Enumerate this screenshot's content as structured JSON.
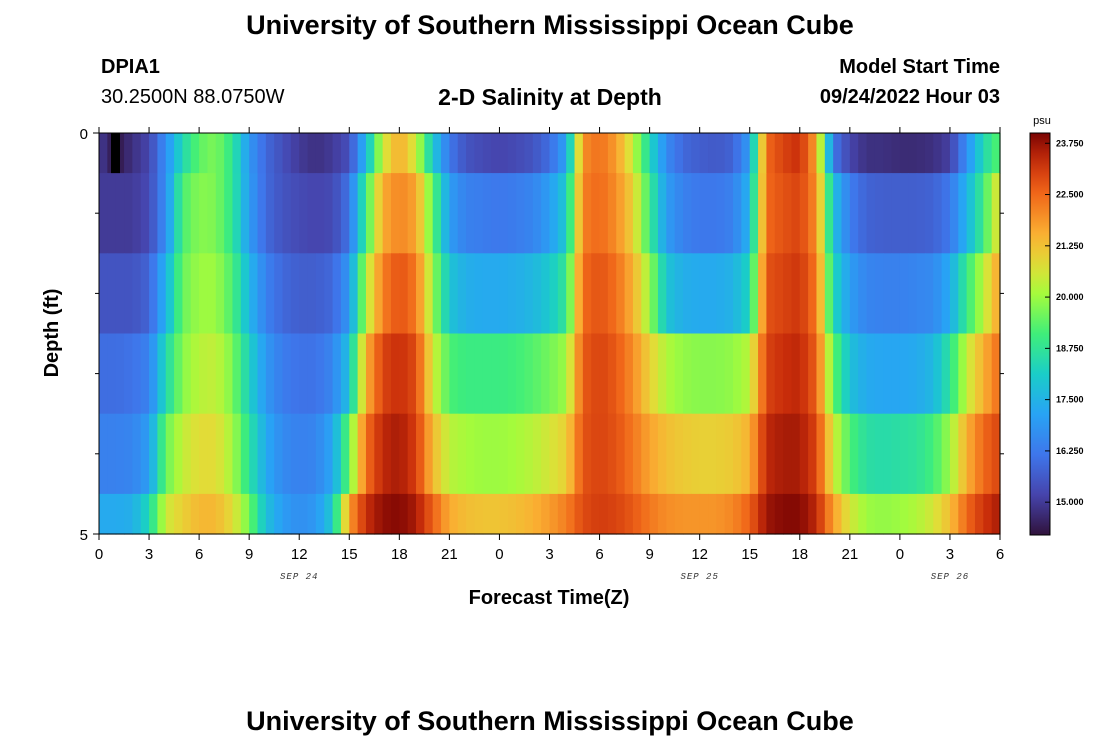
{
  "header": {
    "title": "University of Southern Mississippi Ocean Cube",
    "station_id": "DPIA1",
    "station_coords": "30.2500N  88.0750W",
    "chart_title": "2-D Salinity at Depth",
    "model_label": "Model Start Time",
    "model_time": "09/24/2022 Hour 03"
  },
  "footer": {
    "title": "University of Southern Mississippi Ocean Cube"
  },
  "chart_data": {
    "type": "heatmap",
    "title": "2-D Salinity at Depth",
    "xlabel": "Forecast Time(Z)",
    "ylabel": "Depth (ft)",
    "x_tick_labels": [
      "0",
      "3",
      "6",
      "9",
      "12",
      "15",
      "18",
      "21",
      "0",
      "3",
      "6",
      "9",
      "12",
      "15",
      "18",
      "21",
      "0",
      "3",
      "6"
    ],
    "x_tick_hours": [
      0,
      3,
      6,
      9,
      12,
      15,
      18,
      21,
      24,
      27,
      30,
      33,
      36,
      39,
      42,
      45,
      48,
      51,
      54
    ],
    "date_labels": [
      {
        "text": "SEP 24",
        "hour": 12
      },
      {
        "text": "SEP 25",
        "hour": 36
      },
      {
        "text": "SEP 26",
        "hour": 51
      }
    ],
    "y_tick_labels": [
      {
        "text": "0",
        "depth": 0
      },
      {
        "text": "5",
        "depth": 5
      }
    ],
    "y_minor_ticks": [
      1,
      2,
      3,
      4
    ],
    "ylim": [
      0,
      5
    ],
    "xlim": [
      0,
      54
    ],
    "depth_levels": [
      0,
      1,
      2,
      3,
      4,
      5
    ],
    "colorbar": {
      "unit": "psu",
      "min": 14.2,
      "max": 24.0,
      "tick_values": [
        23.75,
        22.5,
        21.25,
        20.0,
        18.75,
        17.5,
        16.25,
        15.0
      ],
      "tick_labels": [
        "23.750",
        "22.500",
        "21.250",
        "20.000",
        "18.750",
        "17.500",
        "16.250",
        "15.000"
      ]
    },
    "anchor_hours": [
      0,
      1,
      2,
      3,
      4,
      5,
      6,
      7,
      8,
      9,
      10,
      11,
      12,
      13,
      14,
      15,
      16,
      17,
      18,
      19,
      20,
      21,
      22,
      23,
      24,
      25,
      26,
      27,
      28,
      29,
      30,
      31,
      32,
      33,
      34,
      35,
      36,
      37,
      38,
      39,
      40,
      41,
      42,
      43,
      44,
      45,
      46,
      47,
      48,
      49,
      50,
      51,
      52,
      53,
      54
    ],
    "salinity_rows": [
      [
        15.0,
        14.3,
        14.8,
        15.2,
        16.7,
        18.4,
        19.4,
        19.7,
        18.8,
        16.9,
        15.9,
        15.4,
        15.0,
        14.8,
        15.0,
        15.4,
        17.6,
        20.5,
        21.6,
        20.5,
        18.0,
        16.2,
        15.5,
        15.3,
        15.2,
        15.3,
        15.5,
        16.0,
        17.1,
        22.0,
        22.4,
        21.8,
        20.4,
        18.4,
        16.6,
        15.9,
        15.7,
        15.6,
        15.8,
        17.0,
        22.5,
        23.0,
        23.3,
        21.7,
        16.2,
        15.2,
        14.8,
        14.8,
        14.7,
        14.7,
        14.8,
        15.1,
        16.7,
        18.4,
        19.4
      ],
      [
        15.0,
        15.0,
        15.0,
        15.3,
        16.7,
        19.2,
        19.8,
        19.7,
        18.8,
        17.0,
        15.9,
        15.5,
        15.3,
        15.2,
        15.3,
        16.1,
        19.0,
        21.6,
        22.1,
        21.7,
        19.4,
        17.0,
        16.4,
        16.3,
        16.2,
        16.3,
        16.5,
        17.0,
        18.0,
        22.2,
        22.5,
        22.0,
        21.0,
        19.0,
        17.0,
        16.4,
        16.2,
        16.2,
        16.4,
        17.5,
        22.5,
        22.8,
        23.0,
        22.0,
        17.8,
        16.3,
        15.8,
        15.7,
        15.7,
        15.7,
        15.8,
        16.2,
        17.5,
        19.0,
        21.0
      ],
      [
        15.5,
        15.5,
        15.5,
        15.8,
        17.5,
        19.5,
        20.0,
        20.0,
        19.2,
        17.6,
        16.4,
        15.9,
        15.7,
        15.7,
        15.9,
        16.9,
        20.2,
        22.2,
        22.8,
        22.3,
        20.0,
        17.9,
        17.4,
        17.3,
        17.3,
        17.4,
        17.6,
        18.0,
        18.8,
        22.5,
        22.8,
        22.4,
        21.5,
        20.0,
        17.9,
        17.4,
        17.3,
        17.3,
        17.5,
        18.3,
        22.8,
        23.0,
        23.2,
        22.3,
        18.4,
        17.0,
        16.5,
        16.4,
        16.4,
        16.5,
        16.6,
        17.3,
        18.9,
        20.3,
        21.8
      ],
      [
        16.0,
        16.0,
        16.1,
        16.4,
        18.4,
        19.8,
        20.3,
        20.4,
        19.7,
        18.2,
        16.9,
        16.3,
        16.1,
        16.1,
        16.5,
        17.8,
        21.5,
        23.0,
        23.3,
        22.9,
        20.6,
        19.2,
        19.0,
        19.0,
        19.0,
        19.1,
        19.3,
        19.6,
        20.0,
        22.7,
        23.0,
        22.7,
        22.0,
        21.0,
        20.2,
        19.9,
        19.8,
        19.8,
        19.9,
        20.3,
        23.0,
        23.3,
        23.4,
        22.6,
        19.5,
        17.8,
        17.3,
        17.2,
        17.2,
        17.3,
        17.6,
        18.7,
        20.4,
        21.5,
        22.5
      ],
      [
        16.4,
        16.4,
        16.5,
        17.0,
        19.5,
        20.4,
        20.8,
        20.8,
        20.1,
        18.7,
        17.3,
        16.6,
        16.4,
        16.5,
        17.2,
        19.5,
        22.4,
        23.4,
        23.6,
        23.1,
        21.4,
        20.3,
        20.1,
        20.0,
        20.0,
        20.1,
        20.3,
        20.6,
        21.0,
        22.8,
        23.0,
        22.8,
        22.3,
        21.7,
        21.3,
        21.1,
        21.0,
        21.0,
        21.1,
        21.5,
        23.4,
        23.6,
        23.6,
        23.0,
        20.6,
        19.2,
        18.6,
        18.5,
        18.6,
        18.7,
        19.1,
        20.0,
        21.5,
        22.5,
        23.0
      ],
      [
        17.3,
        17.3,
        17.4,
        18.4,
        20.5,
        21.0,
        21.4,
        21.4,
        20.8,
        19.6,
        17.8,
        17.0,
        16.7,
        16.9,
        18.0,
        21.8,
        23.3,
        23.8,
        23.9,
        23.6,
        22.6,
        21.6,
        21.3,
        21.2,
        21.2,
        21.3,
        21.5,
        21.8,
        22.2,
        22.9,
        23.1,
        23.0,
        22.7,
        22.3,
        22.0,
        21.9,
        21.9,
        21.9,
        22.1,
        22.6,
        23.7,
        23.9,
        23.9,
        23.4,
        21.8,
        20.6,
        20.0,
        19.9,
        20.0,
        20.2,
        20.6,
        21.3,
        22.5,
        23.2,
        23.6
      ]
    ]
  }
}
